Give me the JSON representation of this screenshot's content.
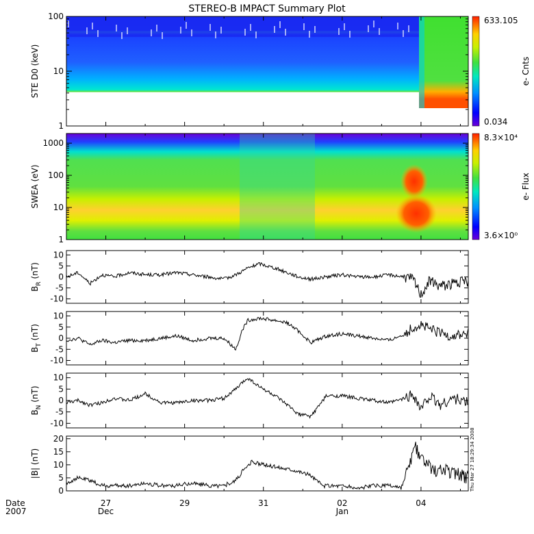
{
  "title": "STEREO-B IMPACT Summary Plot",
  "timestamp": "Thu Mar 27 18:29:34 2008",
  "x_axis": {
    "label_line1": "Date",
    "label_line2": "2007",
    "ticks": [
      {
        "day": 27,
        "label": "27",
        "sub": "Dec"
      },
      {
        "day": 29,
        "label": "29",
        "sub": ""
      },
      {
        "day": 31,
        "label": "31",
        "sub": ""
      },
      {
        "day": 33,
        "label": "02",
        "sub": "Jan"
      },
      {
        "day": 35,
        "label": "04",
        "sub": ""
      }
    ],
    "range_days": [
      26.0,
      36.2
    ]
  },
  "colors": {
    "line": "#000000",
    "frame": "#000000"
  },
  "chart_data": [
    {
      "type": "heatmap",
      "ylabel": "STE D0 (keV)",
      "yscale": "log",
      "ylim": [
        1,
        100
      ],
      "yticks": [
        "1",
        "10",
        "100"
      ],
      "colorbar": {
        "label": "e- Cnts",
        "max_label": "633.105",
        "min_label": "0.034"
      }
    },
    {
      "type": "heatmap",
      "ylabel": "SWEA (eV)",
      "yscale": "log",
      "ylim": [
        1,
        2000
      ],
      "yticks": [
        "1",
        "10",
        "100",
        "1000"
      ],
      "colorbar": {
        "label": "e- Flux",
        "max_label": "8.3×10⁴",
        "min_label": "3.6×10⁰"
      }
    },
    {
      "type": "line",
      "ylabel_main": "B",
      "ylabel_sub": "R",
      "ylabel_unit": " (nT)",
      "ylim": [
        -12,
        12
      ],
      "yticks": [
        "-10",
        "-5",
        "0",
        "5",
        "10"
      ],
      "x": [
        26.0,
        26.3,
        26.6,
        26.9,
        27.2,
        27.6,
        28.0,
        28.4,
        28.8,
        29.2,
        29.6,
        30.0,
        30.3,
        30.6,
        30.9,
        31.1,
        31.3,
        31.6,
        31.9,
        32.2,
        32.6,
        33.0,
        33.4,
        33.8,
        34.2,
        34.6,
        34.8,
        35.0,
        35.2,
        35.5,
        35.8,
        36.2
      ],
      "values": [
        0,
        2,
        -3,
        1,
        0,
        2,
        1,
        1,
        2,
        1,
        0,
        -1,
        1,
        4,
        6,
        5,
        4,
        2,
        0,
        -1,
        0,
        1,
        0,
        0,
        1,
        0,
        -1,
        -8,
        -2,
        -4,
        -3,
        -2
      ]
    },
    {
      "type": "line",
      "ylabel_main": "B",
      "ylabel_sub": "T",
      "ylabel_unit": " (nT)",
      "ylim": [
        -12,
        12
      ],
      "yticks": [
        "-10",
        "-5",
        "0",
        "5",
        "10"
      ],
      "x": [
        26.0,
        26.3,
        26.6,
        26.9,
        27.2,
        27.6,
        28.0,
        28.4,
        28.8,
        29.2,
        29.6,
        30.0,
        30.3,
        30.45,
        30.6,
        30.9,
        31.3,
        31.6,
        31.9,
        32.2,
        32.6,
        33.0,
        33.4,
        33.8,
        34.2,
        34.6,
        34.8,
        35.0,
        35.2,
        35.5,
        35.8,
        36.2
      ],
      "values": [
        -1,
        0,
        -3,
        -1,
        -2,
        -1,
        -1,
        0,
        1,
        -1,
        0,
        0,
        -5,
        3,
        8,
        9,
        8,
        7,
        3,
        -2,
        1,
        2,
        1,
        0,
        -1,
        2,
        5,
        6,
        4,
        2,
        1,
        2
      ]
    },
    {
      "type": "line",
      "ylabel_main": "B",
      "ylabel_sub": "N",
      "ylabel_unit": " (nT)",
      "ylim": [
        -12,
        12
      ],
      "yticks": [
        "-10",
        "-5",
        "0",
        "5",
        "10"
      ],
      "x": [
        26.0,
        26.3,
        26.6,
        26.9,
        27.2,
        27.6,
        28.0,
        28.4,
        28.8,
        29.2,
        29.6,
        30.0,
        30.3,
        30.6,
        30.9,
        31.3,
        31.6,
        31.9,
        32.2,
        32.6,
        33.0,
        33.4,
        33.8,
        34.2,
        34.6,
        34.8,
        35.0,
        35.2,
        35.5,
        35.8,
        36.2
      ],
      "values": [
        -1,
        0,
        -2,
        -1,
        1,
        0,
        3,
        -1,
        -1,
        0,
        0,
        1,
        5,
        10,
        6,
        2,
        -2,
        -6,
        -7,
        2,
        2,
        1,
        0,
        -1,
        1,
        3,
        -4,
        2,
        -2,
        1,
        -1
      ]
    },
    {
      "type": "line",
      "ylabel_main": "|B|",
      "ylabel_sub": "",
      "ylabel_unit": " (nT)",
      "ylim": [
        0,
        21
      ],
      "yticks": [
        "0",
        "5",
        "10",
        "15",
        "20"
      ],
      "x": [
        26.0,
        26.3,
        26.6,
        26.9,
        27.2,
        27.6,
        28.0,
        28.4,
        28.8,
        29.2,
        29.6,
        30.0,
        30.3,
        30.5,
        30.7,
        31.0,
        31.4,
        31.8,
        32.2,
        32.5,
        32.7,
        33.0,
        33.4,
        33.8,
        34.2,
        34.5,
        34.7,
        34.85,
        35.0,
        35.3,
        35.6,
        36.0,
        36.2
      ],
      "values": [
        3,
        5,
        4,
        2,
        2,
        2,
        3,
        2,
        2,
        3,
        2,
        2,
        4,
        8,
        11,
        10,
        9,
        8,
        6,
        2,
        2,
        2,
        1,
        2,
        2,
        1,
        9,
        17,
        12,
        8,
        8,
        6,
        5
      ]
    }
  ]
}
